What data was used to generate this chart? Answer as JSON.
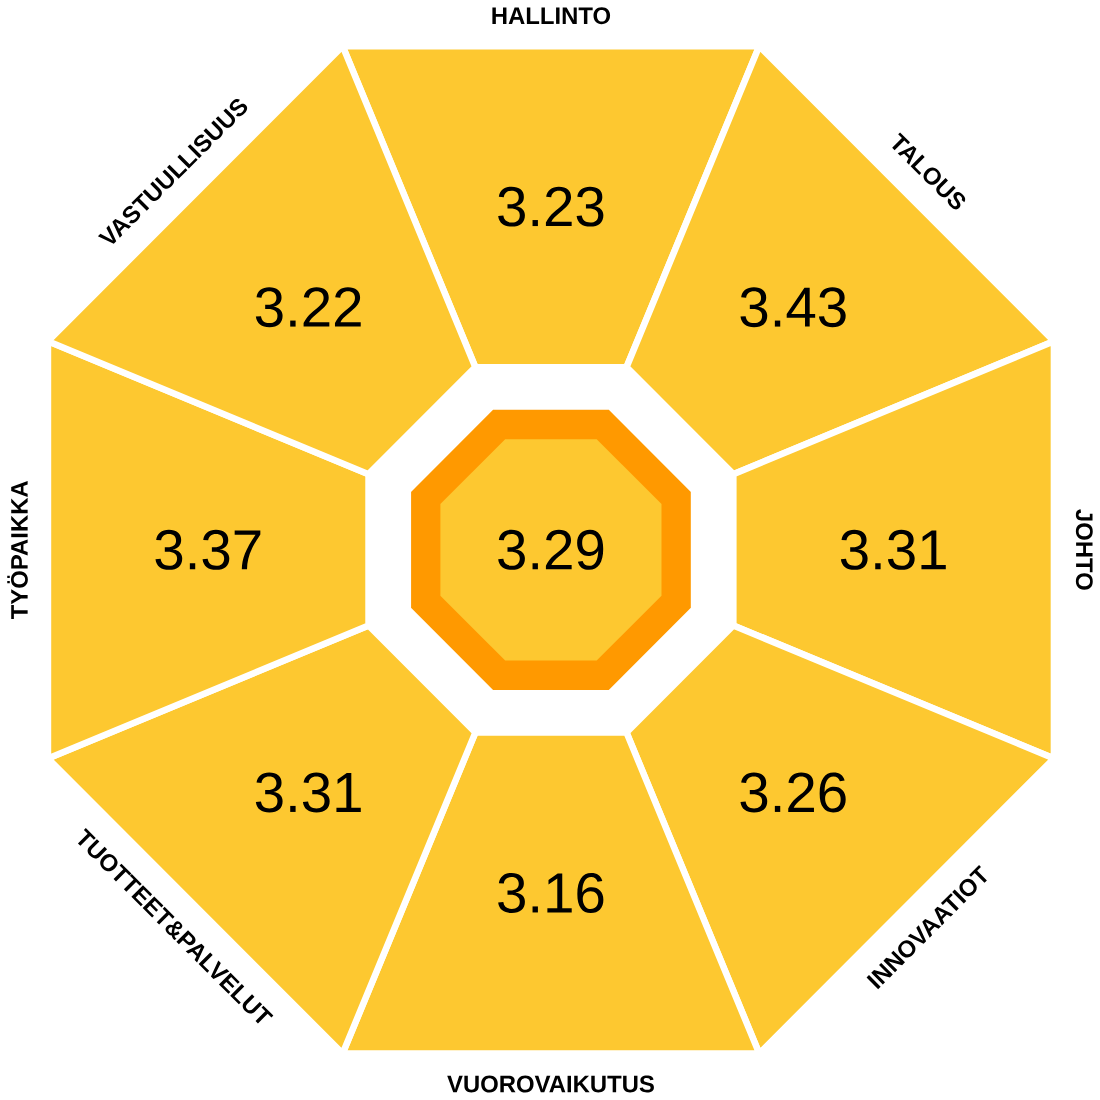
{
  "chart_data": {
    "type": "other",
    "categories": [
      "HALLINTO",
      "TALOUS",
      "JOHTO",
      "INNOVAATIOT",
      "VUOROVAIKUTUS",
      "TUOTTEET&PALVELUT",
      "TYÖPAIKKA",
      "VASTUULLISUUS"
    ],
    "values": [
      3.23,
      3.43,
      3.31,
      3.26,
      3.16,
      3.31,
      3.37,
      3.22
    ],
    "color": "#fdc830",
    "data_labels": true,
    "annotations": [
      "3.29"
    ]
  }
}
